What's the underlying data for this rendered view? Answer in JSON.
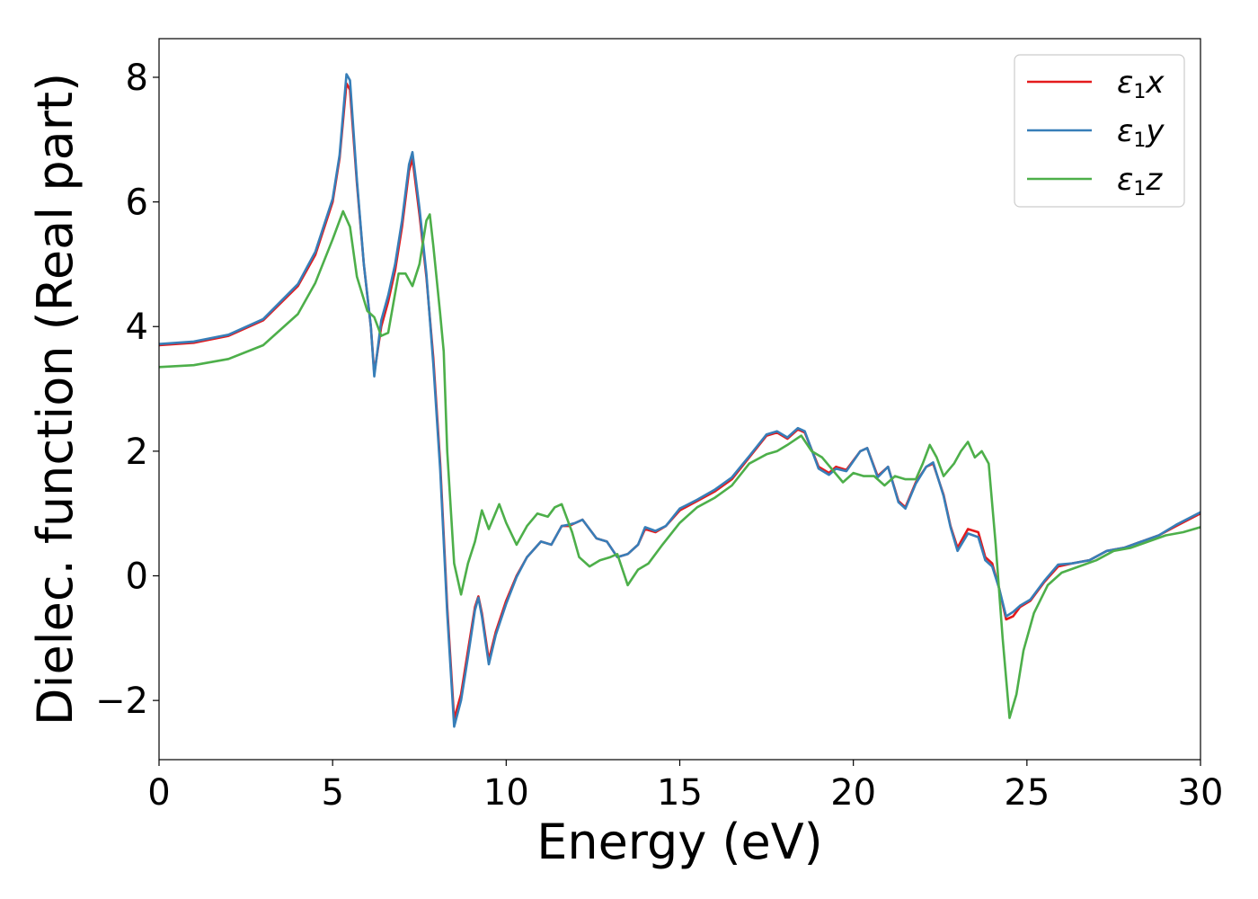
{
  "chart_data": {
    "type": "line",
    "xlabel": "Energy (eV)",
    "ylabel": "Dielec. function (Real part)",
    "xlim": [
      0,
      30
    ],
    "ylim": [
      -2.95,
      8.62
    ],
    "xticks": [
      0,
      5,
      10,
      15,
      20,
      25,
      30
    ],
    "xtick_labels": [
      "0",
      "5",
      "10",
      "15",
      "20",
      "25",
      "30"
    ],
    "yticks": [
      -2,
      0,
      2,
      4,
      6,
      8
    ],
    "ytick_labels": [
      "−2",
      "0",
      "2",
      "4",
      "6",
      "8"
    ],
    "grid": false,
    "legend_position": "top-right",
    "series": [
      {
        "name": "ε1x",
        "legend_base": "ε",
        "legend_sub": "1",
        "legend_axis": "x",
        "color": "#e41a1c",
        "points": [
          [
            0,
            3.7
          ],
          [
            1,
            3.74
          ],
          [
            2,
            3.85
          ],
          [
            3,
            4.1
          ],
          [
            4,
            4.65
          ],
          [
            4.5,
            5.15
          ],
          [
            5,
            6.0
          ],
          [
            5.2,
            6.7
          ],
          [
            5.4,
            7.9
          ],
          [
            5.5,
            7.8
          ],
          [
            5.7,
            6.3
          ],
          [
            5.9,
            5.0
          ],
          [
            6.1,
            4.0
          ],
          [
            6.2,
            3.25
          ],
          [
            6.4,
            4.0
          ],
          [
            6.6,
            4.4
          ],
          [
            6.8,
            4.9
          ],
          [
            7.0,
            5.6
          ],
          [
            7.2,
            6.5
          ],
          [
            7.3,
            6.7
          ],
          [
            7.5,
            5.8
          ],
          [
            7.7,
            4.8
          ],
          [
            7.9,
            3.5
          ],
          [
            8.1,
            1.8
          ],
          [
            8.3,
            -0.5
          ],
          [
            8.5,
            -2.3
          ],
          [
            8.7,
            -1.9
          ],
          [
            8.9,
            -1.2
          ],
          [
            9.1,
            -0.5
          ],
          [
            9.2,
            -0.33
          ],
          [
            9.3,
            -0.6
          ],
          [
            9.5,
            -1.35
          ],
          [
            9.7,
            -0.9
          ],
          [
            10.0,
            -0.4
          ],
          [
            10.3,
            0.0
          ],
          [
            10.6,
            0.3
          ],
          [
            11.0,
            0.55
          ],
          [
            11.3,
            0.5
          ],
          [
            11.6,
            0.8
          ],
          [
            11.8,
            0.8
          ],
          [
            12.0,
            0.85
          ],
          [
            12.2,
            0.9
          ],
          [
            12.6,
            0.6
          ],
          [
            12.9,
            0.55
          ],
          [
            13.2,
            0.3
          ],
          [
            13.5,
            0.35
          ],
          [
            13.8,
            0.5
          ],
          [
            14.0,
            0.75
          ],
          [
            14.3,
            0.7
          ],
          [
            14.6,
            0.8
          ],
          [
            15.0,
            1.05
          ],
          [
            15.5,
            1.2
          ],
          [
            16.0,
            1.35
          ],
          [
            16.5,
            1.55
          ],
          [
            17.0,
            1.9
          ],
          [
            17.5,
            2.25
          ],
          [
            17.8,
            2.3
          ],
          [
            18.1,
            2.2
          ],
          [
            18.4,
            2.35
          ],
          [
            18.6,
            2.3
          ],
          [
            19.0,
            1.75
          ],
          [
            19.3,
            1.65
          ],
          [
            19.5,
            1.75
          ],
          [
            19.8,
            1.7
          ],
          [
            20.2,
            2.0
          ],
          [
            20.4,
            2.05
          ],
          [
            20.7,
            1.6
          ],
          [
            21.0,
            1.75
          ],
          [
            21.3,
            1.2
          ],
          [
            21.5,
            1.1
          ],
          [
            21.8,
            1.5
          ],
          [
            22.1,
            1.75
          ],
          [
            22.3,
            1.8
          ],
          [
            22.6,
            1.3
          ],
          [
            22.8,
            0.8
          ],
          [
            23.0,
            0.45
          ],
          [
            23.3,
            0.75
          ],
          [
            23.6,
            0.7
          ],
          [
            23.8,
            0.3
          ],
          [
            24.0,
            0.2
          ],
          [
            24.2,
            -0.2
          ],
          [
            24.4,
            -0.7
          ],
          [
            24.6,
            -0.65
          ],
          [
            24.8,
            -0.5
          ],
          [
            25.1,
            -0.4
          ],
          [
            25.5,
            -0.1
          ],
          [
            25.9,
            0.15
          ],
          [
            26.3,
            0.2
          ],
          [
            26.8,
            0.25
          ],
          [
            27.3,
            0.4
          ],
          [
            27.8,
            0.45
          ],
          [
            28.3,
            0.55
          ],
          [
            28.8,
            0.65
          ],
          [
            29.3,
            0.8
          ],
          [
            30.0,
            1.0
          ]
        ]
      },
      {
        "name": "ε1y",
        "legend_base": "ε",
        "legend_sub": "1",
        "legend_axis": "y",
        "color": "#377eb8",
        "points": [
          [
            0,
            3.72
          ],
          [
            1,
            3.76
          ],
          [
            2,
            3.87
          ],
          [
            3,
            4.12
          ],
          [
            4,
            4.68
          ],
          [
            4.5,
            5.2
          ],
          [
            5,
            6.05
          ],
          [
            5.2,
            6.75
          ],
          [
            5.4,
            8.05
          ],
          [
            5.5,
            7.95
          ],
          [
            5.7,
            6.35
          ],
          [
            5.9,
            5.0
          ],
          [
            6.1,
            4.0
          ],
          [
            6.2,
            3.2
          ],
          [
            6.4,
            4.1
          ],
          [
            6.6,
            4.5
          ],
          [
            6.8,
            5.0
          ],
          [
            7.0,
            5.7
          ],
          [
            7.2,
            6.6
          ],
          [
            7.3,
            6.8
          ],
          [
            7.5,
            5.9
          ],
          [
            7.7,
            4.85
          ],
          [
            7.9,
            3.4
          ],
          [
            8.1,
            1.7
          ],
          [
            8.3,
            -0.6
          ],
          [
            8.5,
            -2.42
          ],
          [
            8.7,
            -2.0
          ],
          [
            8.9,
            -1.3
          ],
          [
            9.1,
            -0.55
          ],
          [
            9.2,
            -0.35
          ],
          [
            9.3,
            -0.65
          ],
          [
            9.5,
            -1.42
          ],
          [
            9.7,
            -0.95
          ],
          [
            10.0,
            -0.45
          ],
          [
            10.3,
            -0.02
          ],
          [
            10.6,
            0.3
          ],
          [
            11.0,
            0.55
          ],
          [
            11.3,
            0.5
          ],
          [
            11.6,
            0.8
          ],
          [
            11.8,
            0.82
          ],
          [
            12.0,
            0.85
          ],
          [
            12.2,
            0.9
          ],
          [
            12.6,
            0.6
          ],
          [
            12.9,
            0.55
          ],
          [
            13.2,
            0.3
          ],
          [
            13.5,
            0.35
          ],
          [
            13.8,
            0.5
          ],
          [
            14.0,
            0.78
          ],
          [
            14.3,
            0.72
          ],
          [
            14.6,
            0.8
          ],
          [
            15.0,
            1.08
          ],
          [
            15.5,
            1.22
          ],
          [
            16.0,
            1.38
          ],
          [
            16.5,
            1.58
          ],
          [
            17.0,
            1.92
          ],
          [
            17.5,
            2.27
          ],
          [
            17.8,
            2.32
          ],
          [
            18.1,
            2.22
          ],
          [
            18.4,
            2.37
          ],
          [
            18.6,
            2.32
          ],
          [
            19.0,
            1.72
          ],
          [
            19.3,
            1.62
          ],
          [
            19.5,
            1.72
          ],
          [
            19.8,
            1.68
          ],
          [
            20.2,
            2.0
          ],
          [
            20.4,
            2.05
          ],
          [
            20.7,
            1.58
          ],
          [
            21.0,
            1.75
          ],
          [
            21.3,
            1.18
          ],
          [
            21.5,
            1.08
          ],
          [
            21.8,
            1.48
          ],
          [
            22.1,
            1.75
          ],
          [
            22.3,
            1.82
          ],
          [
            22.6,
            1.28
          ],
          [
            22.8,
            0.78
          ],
          [
            23.0,
            0.4
          ],
          [
            23.3,
            0.68
          ],
          [
            23.6,
            0.62
          ],
          [
            23.8,
            0.25
          ],
          [
            24.0,
            0.15
          ],
          [
            24.2,
            -0.2
          ],
          [
            24.4,
            -0.65
          ],
          [
            24.6,
            -0.58
          ],
          [
            24.8,
            -0.48
          ],
          [
            25.1,
            -0.38
          ],
          [
            25.5,
            -0.08
          ],
          [
            25.9,
            0.18
          ],
          [
            26.3,
            0.2
          ],
          [
            26.8,
            0.25
          ],
          [
            27.3,
            0.4
          ],
          [
            27.8,
            0.45
          ],
          [
            28.3,
            0.55
          ],
          [
            28.8,
            0.65
          ],
          [
            29.3,
            0.82
          ],
          [
            30.0,
            1.02
          ]
        ]
      },
      {
        "name": "ε1z",
        "legend_base": "ε",
        "legend_sub": "1",
        "legend_axis": "z",
        "color": "#4daf4a",
        "points": [
          [
            0,
            3.35
          ],
          [
            1,
            3.38
          ],
          [
            2,
            3.48
          ],
          [
            3,
            3.7
          ],
          [
            4,
            4.2
          ],
          [
            4.5,
            4.7
          ],
          [
            5.0,
            5.4
          ],
          [
            5.3,
            5.85
          ],
          [
            5.5,
            5.6
          ],
          [
            5.7,
            4.8
          ],
          [
            6.0,
            4.25
          ],
          [
            6.2,
            4.15
          ],
          [
            6.4,
            3.85
          ],
          [
            6.6,
            3.9
          ],
          [
            6.9,
            4.85
          ],
          [
            7.1,
            4.85
          ],
          [
            7.3,
            4.65
          ],
          [
            7.5,
            5.0
          ],
          [
            7.7,
            5.7
          ],
          [
            7.8,
            5.8
          ],
          [
            7.9,
            5.3
          ],
          [
            8.1,
            4.2
          ],
          [
            8.2,
            3.6
          ],
          [
            8.3,
            2.0
          ],
          [
            8.5,
            0.2
          ],
          [
            8.7,
            -0.3
          ],
          [
            8.9,
            0.2
          ],
          [
            9.1,
            0.55
          ],
          [
            9.3,
            1.05
          ],
          [
            9.5,
            0.75
          ],
          [
            9.8,
            1.15
          ],
          [
            10.0,
            0.85
          ],
          [
            10.3,
            0.5
          ],
          [
            10.6,
            0.8
          ],
          [
            10.9,
            1.0
          ],
          [
            11.2,
            0.95
          ],
          [
            11.4,
            1.1
          ],
          [
            11.6,
            1.15
          ],
          [
            11.9,
            0.7
          ],
          [
            12.1,
            0.3
          ],
          [
            12.4,
            0.15
          ],
          [
            12.7,
            0.25
          ],
          [
            13.0,
            0.3
          ],
          [
            13.2,
            0.35
          ],
          [
            13.5,
            -0.15
          ],
          [
            13.8,
            0.1
          ],
          [
            14.1,
            0.2
          ],
          [
            14.5,
            0.5
          ],
          [
            15.0,
            0.85
          ],
          [
            15.5,
            1.1
          ],
          [
            16.0,
            1.25
          ],
          [
            16.5,
            1.45
          ],
          [
            17.0,
            1.8
          ],
          [
            17.5,
            1.95
          ],
          [
            17.8,
            2.0
          ],
          [
            18.1,
            2.1
          ],
          [
            18.5,
            2.25
          ],
          [
            18.8,
            2.0
          ],
          [
            19.1,
            1.9
          ],
          [
            19.4,
            1.7
          ],
          [
            19.7,
            1.5
          ],
          [
            20.0,
            1.65
          ],
          [
            20.3,
            1.6
          ],
          [
            20.6,
            1.6
          ],
          [
            20.9,
            1.45
          ],
          [
            21.2,
            1.6
          ],
          [
            21.5,
            1.55
          ],
          [
            21.8,
            1.55
          ],
          [
            22.0,
            1.8
          ],
          [
            22.2,
            2.1
          ],
          [
            22.4,
            1.9
          ],
          [
            22.6,
            1.6
          ],
          [
            22.9,
            1.8
          ],
          [
            23.1,
            2.0
          ],
          [
            23.3,
            2.15
          ],
          [
            23.5,
            1.9
          ],
          [
            23.7,
            2.0
          ],
          [
            23.9,
            1.8
          ],
          [
            24.1,
            0.5
          ],
          [
            24.3,
            -1.0
          ],
          [
            24.5,
            -2.28
          ],
          [
            24.7,
            -1.9
          ],
          [
            24.9,
            -1.2
          ],
          [
            25.2,
            -0.6
          ],
          [
            25.6,
            -0.15
          ],
          [
            26.0,
            0.05
          ],
          [
            26.5,
            0.15
          ],
          [
            27.0,
            0.25
          ],
          [
            27.5,
            0.4
          ],
          [
            28.0,
            0.45
          ],
          [
            28.5,
            0.55
          ],
          [
            29.0,
            0.65
          ],
          [
            29.5,
            0.7
          ],
          [
            30.0,
            0.78
          ]
        ]
      }
    ]
  }
}
